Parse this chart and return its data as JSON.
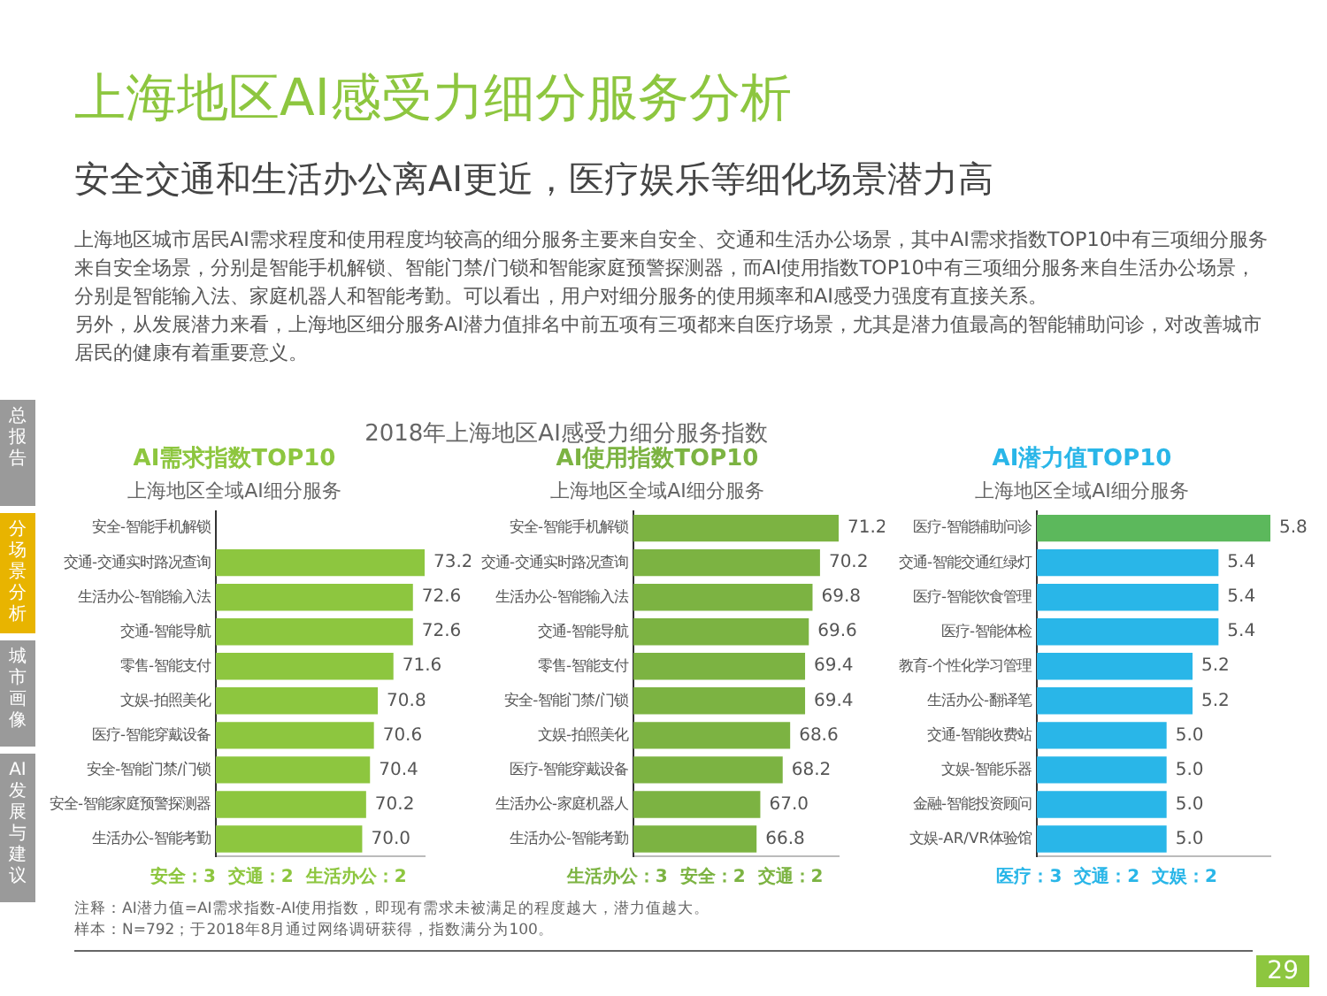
{
  "chart_data": [
    {
      "type": "other",
      "title": "上海地区AI感受力细分服务分析",
      "subtitle": "安全交通和生活办公离AI更近，医疗娱乐等细化场景潜力高",
      "annotations": [
        "上海地区城市居民AI需求程度和使用程度均较高的细分服务主要来自安全、交通和生活办公场景，其中AI需求指数TOP10中有三项细分服务来自安全场景，分别是智能手机解锁、智能门禁/门锁和智能家庭预警探测器，而AI使用指数TOP10中有三项细分服务来自生活办公场景，分别是智能输入法、家庭机器人和智能考勤。可以看出，用户对细分服务的使用频率和AI感受力强度有直接关系。",
        "另外，从发展潜力来看，上海地区细分服务AI潜力值排名中前五项有三项都来自医疗场景，尤其是潜力值最高的智能辅助问诊，对改善城市居民的健康有着重要意义。",
        "2018年上海地区AI感受力细分服务指数",
        "注释：AI潜力值=AI需求指数-AI使用指数，即现有需求未被满足的程度越大，潜力值越大。",
        "样本：N=792；于2018年8月通过网络调研获得，指数满分为100。",
        "总报告",
        "分场景分析",
        "城市画像",
        "AI发展与建议",
        "29"
      ]
    },
    {
      "type": "bar",
      "orientation": "horizontal",
      "title": "AI需求指数TOP10",
      "subtitle": "上海地区全域AI细分服务",
      "categories": [
        "安全-智能手机解锁",
        "交通-交通实时路况查询",
        "生活办公-智能输入法",
        "交通-智能导航",
        "零售-智能支付",
        "文娱-拍照美化",
        "医疗-智能穿戴设备",
        "安全-智能门禁/门锁",
        "安全-智能家庭预警探测器",
        "生活办公-智能考勤"
      ],
      "values": [
        null,
        73.2,
        72.6,
        72.6,
        71.6,
        70.8,
        70.6,
        70.4,
        70.2,
        70.0
      ],
      "value_labels": [
        null,
        "73.2",
        "72.6",
        "72.6",
        "71.6",
        "70.8",
        "70.6",
        "70.4",
        "70.2",
        "70.0"
      ],
      "color": "#8dc63f",
      "xlim": [
        62.5,
        73.2
      ],
      "annotations": [
        "安全：3  交通：2  生活办公：2"
      ]
    },
    {
      "type": "bar",
      "orientation": "horizontal",
      "title": "AI使用指数TOP10",
      "subtitle": "上海地区全域AI细分服务",
      "categories": [
        "安全-智能手机解锁",
        "交通-交通实时路况查询",
        "生活办公-智能输入法",
        "交通-智能导航",
        "零售-智能支付",
        "安全-智能门禁/门锁",
        "文娱-拍照美化",
        "医疗-智能穿戴设备",
        "生活办公-家庭机器人",
        "生活办公-智能考勤"
      ],
      "values": [
        71.2,
        70.2,
        69.8,
        69.6,
        69.4,
        69.4,
        68.6,
        68.2,
        67.0,
        66.8
      ],
      "value_labels": [
        "71.2",
        "70.2",
        "69.8",
        "69.6",
        "69.4",
        "69.4",
        "68.6",
        "68.2",
        "67.0",
        "66.8"
      ],
      "color": "#7cb342",
      "xlim": [
        60.2,
        71.2
      ],
      "annotations": [
        "生活办公：3  安全：2  交通：2"
      ]
    },
    {
      "type": "bar",
      "orientation": "horizontal",
      "title": "AI潜力值TOP10",
      "subtitle": "上海地区全域AI细分服务",
      "categories": [
        "医疗-智能辅助问诊",
        "交通-智能交通红绿灯",
        "医疗-智能饮食管理",
        "医疗-智能体检",
        "教育-个性化学习管理",
        "生活办公-翻译笔",
        "交通-智能收费站",
        "文娱-智能乐器",
        "金融-智能投资顾问",
        "文娱-AR/VR体验馆"
      ],
      "values": [
        5.8,
        5.4,
        5.4,
        5.4,
        5.2,
        5.2,
        5.0,
        5.0,
        5.0,
        5.0
      ],
      "value_labels": [
        "5.8",
        "5.4",
        "5.4",
        "5.4",
        "5.2",
        "5.2",
        "5.0",
        "5.0",
        "5.0",
        "5.0"
      ],
      "colors": [
        "#5cb85c",
        "#29b6e8",
        "#29b6e8",
        "#29b6e8",
        "#29b6e8",
        "#29b6e8",
        "#29b6e8",
        "#29b6e8",
        "#29b6e8",
        "#29b6e8"
      ],
      "xlim": [
        4.0,
        5.8
      ],
      "annotations": [
        "医疗：3  交通：2  文娱：2"
      ]
    }
  ]
}
